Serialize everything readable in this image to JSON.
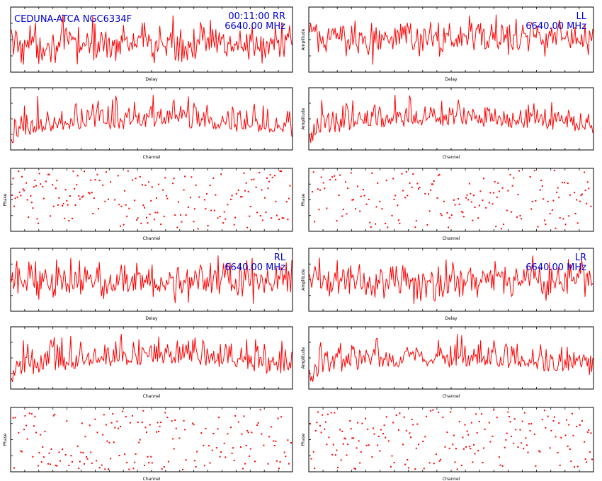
{
  "header": {
    "source": "CEDUNA-ATCA NGC6334F",
    "time": "00:11:00",
    "frequency": "6640.00 MHz"
  },
  "colors": {
    "trace": "#ff0000",
    "annotation": "#0000cc",
    "axes": "#000000"
  },
  "chart_data": [
    {
      "panel": "RR-delay",
      "type": "line",
      "product": "RR",
      "xlabel": "Delay",
      "ylabel": "",
      "annotation": [
        "00:11:00  RR",
        "6640.00 MHz"
      ],
      "ylim": [
        -1,
        1
      ],
      "series": [
        {
          "values": []
        }
      ]
    },
    {
      "panel": "RR-channel",
      "type": "line",
      "product": "RR",
      "xlabel": "Channel",
      "ylabel": "",
      "series": [
        {
          "values": []
        }
      ]
    },
    {
      "panel": "RR-phase",
      "type": "scatter",
      "product": "RR",
      "xlabel": "Channel",
      "ylabel": "Phase",
      "series": [
        {
          "values": []
        }
      ]
    },
    {
      "panel": "LL-delay",
      "type": "line",
      "product": "LL",
      "xlabel": "Delay",
      "ylabel": "Amplitude",
      "annotation": [
        "LL",
        "6640.00 MHz"
      ],
      "series": [
        {
          "values": []
        }
      ]
    },
    {
      "panel": "LL-channel",
      "type": "line",
      "product": "LL",
      "xlabel": "Channel",
      "ylabel": "Amplitude",
      "series": [
        {
          "values": []
        }
      ]
    },
    {
      "panel": "LL-phase",
      "type": "scatter",
      "product": "LL",
      "xlabel": "Channel",
      "ylabel": "Phase",
      "series": [
        {
          "values": []
        }
      ]
    },
    {
      "panel": "RL-delay",
      "type": "line",
      "product": "RL",
      "xlabel": "Delay",
      "ylabel": "",
      "annotation": [
        "RL",
        "6640.00 MHz"
      ],
      "series": [
        {
          "values": []
        }
      ]
    },
    {
      "panel": "RL-channel",
      "type": "line",
      "product": "RL",
      "xlabel": "Channel",
      "ylabel": "",
      "series": [
        {
          "values": []
        }
      ]
    },
    {
      "panel": "RL-phase",
      "type": "scatter",
      "product": "RL",
      "xlabel": "Channel",
      "ylabel": "Phase",
      "series": [
        {
          "values": []
        }
      ]
    },
    {
      "panel": "LR-delay",
      "type": "line",
      "product": "LR",
      "xlabel": "Delay",
      "ylabel": "Amplitude",
      "annotation": [
        "LR",
        "6640.00 MHz"
      ],
      "series": [
        {
          "values": []
        }
      ]
    },
    {
      "panel": "LR-channel",
      "type": "line",
      "product": "LR",
      "xlabel": "Channel",
      "ylabel": "Amplitude",
      "series": [
        {
          "values": []
        }
      ]
    },
    {
      "panel": "LR-phase",
      "type": "scatter",
      "product": "LR",
      "xlabel": "Channel",
      "ylabel": "Phase",
      "series": [
        {
          "values": []
        }
      ]
    }
  ]
}
